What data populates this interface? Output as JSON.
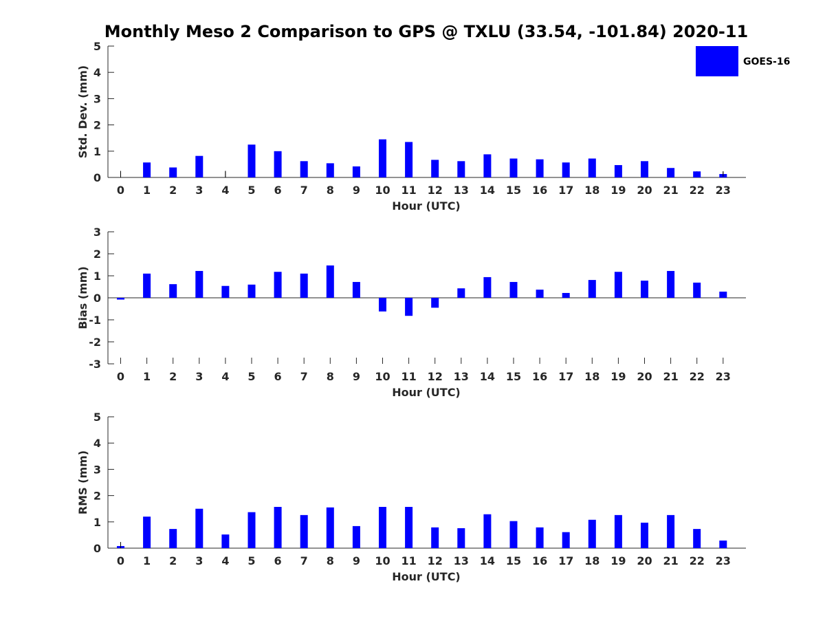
{
  "title": "Monthly Meso 2 Comparison to GPS @ TXLU (33.54, -101.84) 2020-11",
  "colors": {
    "bar": "#0000ff",
    "axis": "#262626",
    "background": "#ffffff"
  },
  "legend": {
    "label": "GOES-16",
    "placement": "top-right"
  },
  "chart_data": [
    {
      "type": "bar",
      "xlabel": "Hour (UTC)",
      "ylabel": "Std. Dev. (mm)",
      "ylim": [
        0,
        5
      ],
      "yticks": [
        0,
        1,
        2,
        3,
        4,
        5
      ],
      "categories": [
        "0",
        "1",
        "2",
        "3",
        "4",
        "5",
        "6",
        "7",
        "8",
        "9",
        "10",
        "11",
        "12",
        "13",
        "14",
        "15",
        "16",
        "17",
        "18",
        "19",
        "20",
        "21",
        "22",
        "23"
      ],
      "series": [
        {
          "name": "GOES-16",
          "values": [
            0.0,
            0.57,
            0.38,
            0.82,
            0.0,
            1.25,
            1.0,
            0.62,
            0.54,
            0.42,
            1.45,
            1.35,
            0.67,
            0.62,
            0.88,
            0.72,
            0.69,
            0.57,
            0.72,
            0.47,
            0.62,
            0.36,
            0.23,
            0.13
          ],
          "errors": [
            0.25,
            0,
            0,
            0,
            0.25,
            0,
            0,
            0,
            0,
            0,
            0,
            0,
            0,
            0,
            0,
            0,
            0,
            0,
            0,
            0,
            0,
            0,
            0,
            0.1
          ]
        }
      ]
    },
    {
      "type": "bar",
      "xlabel": "Hour (UTC)",
      "ylabel": "Bias (mm)",
      "ylim": [
        -3,
        3
      ],
      "yticks": [
        -3,
        -2,
        -1,
        0,
        1,
        2,
        3
      ],
      "categories": [
        "0",
        "1",
        "2",
        "3",
        "4",
        "5",
        "6",
        "7",
        "8",
        "9",
        "10",
        "11",
        "12",
        "13",
        "14",
        "15",
        "16",
        "17",
        "18",
        "19",
        "20",
        "21",
        "22",
        "23"
      ],
      "series": [
        {
          "name": "GOES-16",
          "values": [
            -0.08,
            1.1,
            0.62,
            1.22,
            0.54,
            0.6,
            1.18,
            1.1,
            1.47,
            0.72,
            -0.62,
            -0.82,
            -0.45,
            0.43,
            0.94,
            0.72,
            0.37,
            0.22,
            0.81,
            1.18,
            0.78,
            1.22,
            0.69,
            0.28
          ],
          "errors": [
            0,
            0,
            0,
            0,
            0,
            0,
            0,
            0,
            0,
            0,
            0,
            0,
            0,
            0,
            0,
            0,
            0,
            0,
            0,
            0,
            0,
            0,
            0,
            0
          ]
        }
      ]
    },
    {
      "type": "bar",
      "xlabel": "Hour (UTC)",
      "ylabel": "RMS (mm)",
      "ylim": [
        0,
        5
      ],
      "yticks": [
        0,
        1,
        2,
        3,
        4,
        5
      ],
      "categories": [
        "0",
        "1",
        "2",
        "3",
        "4",
        "5",
        "6",
        "7",
        "8",
        "9",
        "10",
        "11",
        "12",
        "13",
        "14",
        "15",
        "16",
        "17",
        "18",
        "19",
        "20",
        "21",
        "22",
        "23"
      ],
      "series": [
        {
          "name": "GOES-16",
          "values": [
            0.08,
            1.2,
            0.73,
            1.5,
            0.52,
            1.37,
            1.57,
            1.26,
            1.55,
            0.84,
            1.57,
            1.57,
            0.79,
            0.76,
            1.29,
            1.03,
            0.79,
            0.61,
            1.08,
            1.26,
            0.97,
            1.26,
            0.73,
            0.29
          ],
          "errors": [
            0.15,
            0,
            0,
            0,
            0,
            0,
            0,
            0,
            0,
            0,
            0,
            0,
            0,
            0,
            0,
            0,
            0,
            0,
            0,
            0,
            0,
            0,
            0,
            0
          ]
        }
      ]
    }
  ]
}
